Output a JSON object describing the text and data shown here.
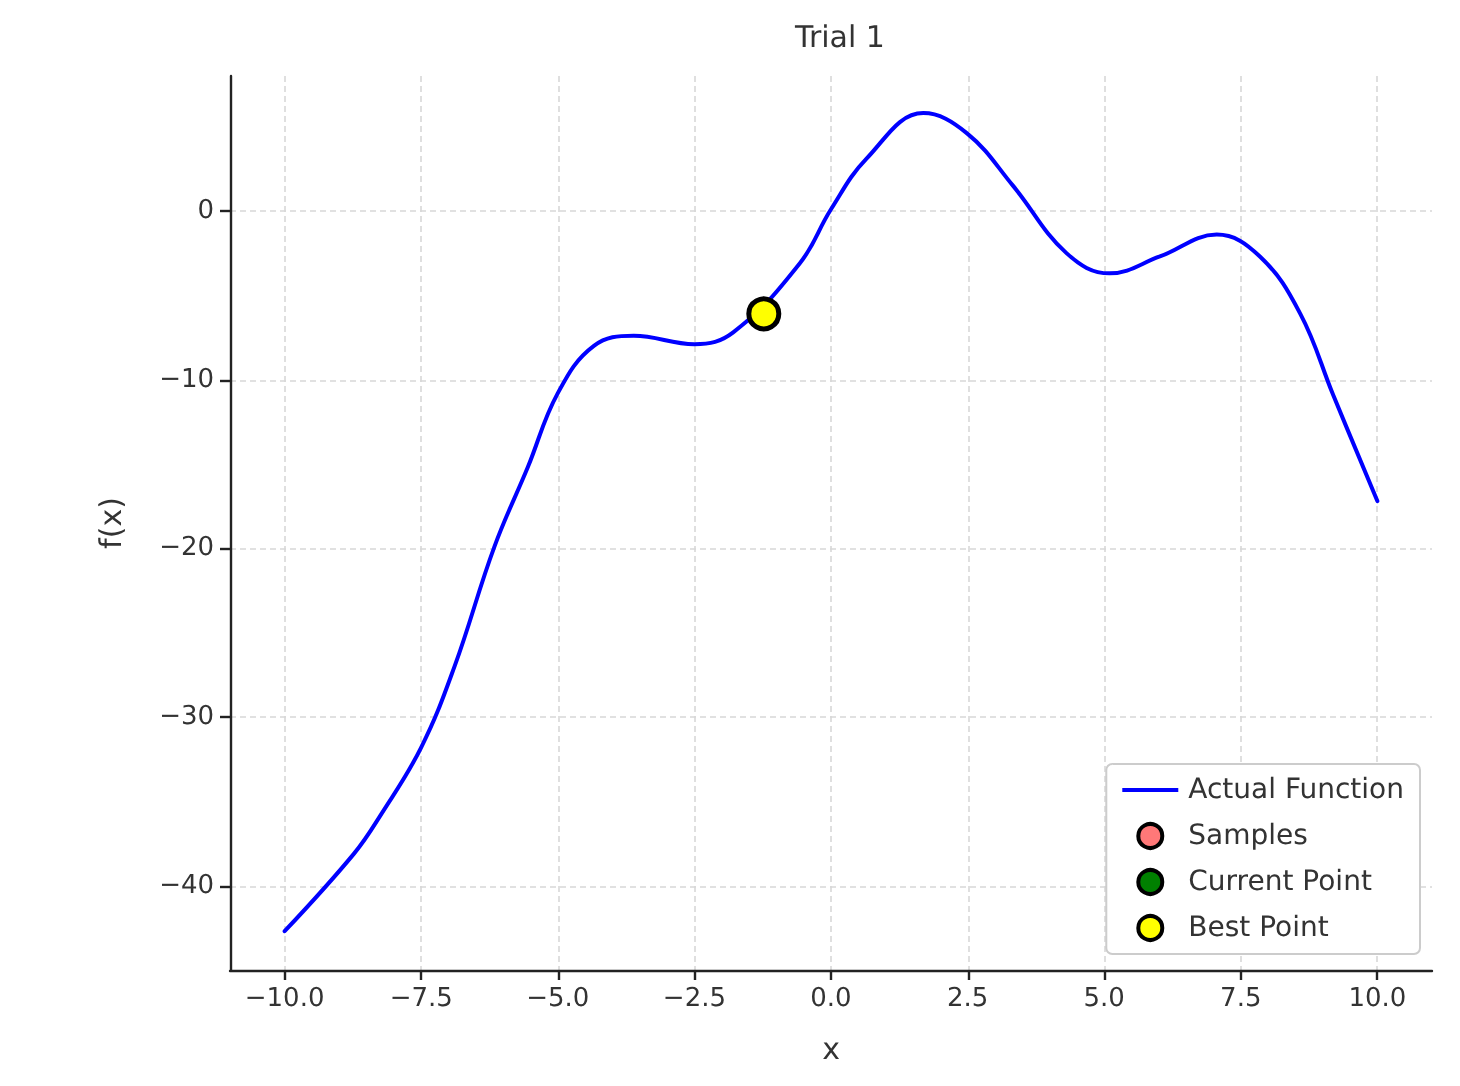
{
  "chart_data": {
    "type": "line",
    "title": "Trial 1",
    "xlabel": "x",
    "ylabel": "f(x)",
    "xlim": [
      -11,
      11
    ],
    "ylim": [
      -45,
      8
    ],
    "xticks": [
      {
        "value": -10,
        "label": "−10.0"
      },
      {
        "value": -7.5,
        "label": "−7.5"
      },
      {
        "value": -5,
        "label": "−5.0"
      },
      {
        "value": -2.5,
        "label": "−2.5"
      },
      {
        "value": 0,
        "label": "0.0"
      },
      {
        "value": 2.5,
        "label": "2.5"
      },
      {
        "value": 5,
        "label": "5.0"
      },
      {
        "value": 7.5,
        "label": "7.5"
      },
      {
        "value": 10,
        "label": "10.0"
      }
    ],
    "yticks": [
      {
        "value": -40,
        "label": "−40"
      },
      {
        "value": -30,
        "label": "−30"
      },
      {
        "value": -20,
        "label": "−20"
      },
      {
        "value": -10,
        "label": "−10"
      },
      0
    ],
    "grid": true,
    "legend": "bottom right",
    "series": [
      {
        "name": "Actual Function",
        "color": "#0000ff",
        "x": [
          -10,
          -8.73,
          -8.24,
          -7.5,
          -6.89,
          -6.16,
          -5.55,
          -5,
          -4.34,
          -3.61,
          -2.5,
          -1.79,
          -0.57,
          0,
          0.65,
          1.69,
          2.49,
          3.33,
          4.31,
          5.1,
          6.02,
          7.06,
          7.85,
          8.59,
          9.19,
          10
        ],
        "values": [
          -42.7,
          -38.1,
          -35.8,
          -31.8,
          -27,
          -19.9,
          -15.2,
          -10.8,
          -8,
          -7.4,
          -7.9,
          -7.2,
          -3.1,
          0.1,
          3.1,
          5.8,
          4.6,
          1.5,
          -2.5,
          -3.7,
          -2.7,
          -1.4,
          -2.7,
          -6.1,
          -10.9,
          -17.2
        ]
      },
      {
        "name": "Samples",
        "type": "scatter",
        "color": "#ff7878"
      },
      {
        "name": "Current Point",
        "type": "scatter",
        "color": "#008000"
      },
      {
        "name": "Best Point",
        "type": "scatter",
        "color": "#ffff00",
        "x": [
          -1.23
        ],
        "values": [
          -6.1
        ]
      }
    ]
  }
}
